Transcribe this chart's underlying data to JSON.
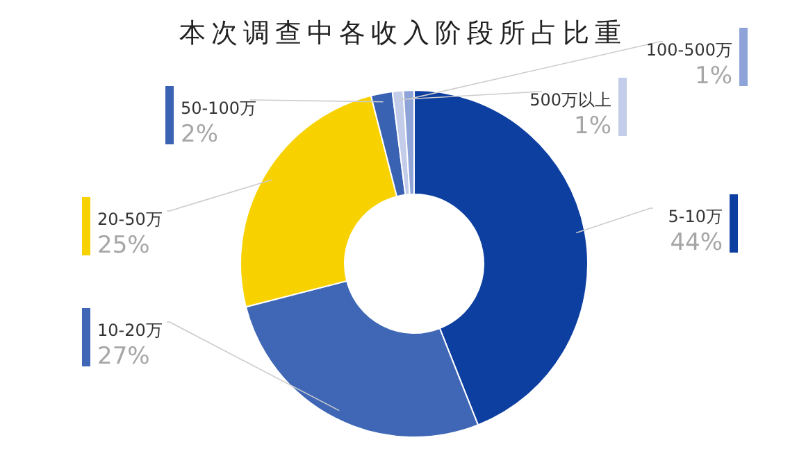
{
  "chart_data": {
    "type": "donut",
    "title": "本次调查中各收入阶段所占比重",
    "categories": [
      "5-10万",
      "10-20万",
      "20-50万",
      "50-100万",
      "500万以上",
      "100-500万"
    ],
    "values": [
      44,
      27,
      25,
      2,
      1,
      1
    ],
    "colors": [
      "#0d3fa0",
      "#3f67b6",
      "#f8d200",
      "#3a62b2",
      "#c3cdea",
      "#8ea4d9"
    ],
    "value_labels": [
      "44%",
      "27%",
      "25%",
      "2%",
      "1%",
      "1%"
    ],
    "legend": false
  }
}
